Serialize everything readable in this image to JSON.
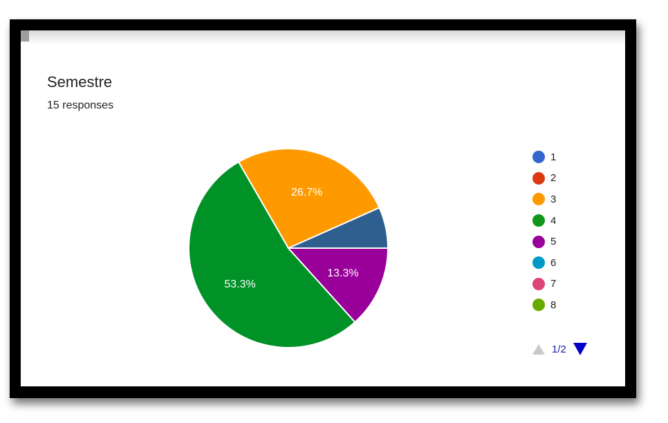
{
  "chart_data": {
    "type": "pie",
    "title": "Semestre",
    "subtitle": "15 responses",
    "categories": [
      "1",
      "2",
      "3",
      "4",
      "5",
      "6",
      "7",
      "8"
    ],
    "values": [
      1,
      0,
      4,
      8,
      2,
      0,
      0,
      0
    ],
    "percent_labels": [
      "",
      "",
      "26.7%",
      "53.3%",
      "13.3%",
      "",
      "",
      ""
    ],
    "colors": [
      "#3366cc",
      "#dc3912",
      "#ff9900",
      "#109618",
      "#990099",
      "#0099c6",
      "#dd4477",
      "#66aa00"
    ],
    "slice_colors": [
      "#2e5f8f",
      "#dc3912",
      "#ff9900",
      "#009127",
      "#990099",
      "#0099c6",
      "#dd4477",
      "#66aa00"
    ],
    "legend_position": "right"
  },
  "pager": {
    "text": "1/2"
  }
}
